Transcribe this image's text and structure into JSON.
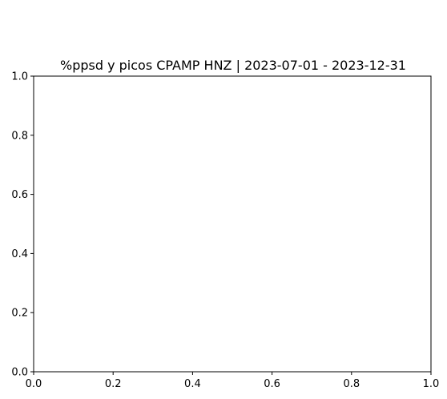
{
  "chart_data": {
    "type": "line",
    "title": "%ppsd y picos CPAMP HNZ | 2023-07-01 - 2023-12-31",
    "xlabel": "",
    "ylabel": "",
    "xlim": [
      0,
      1
    ],
    "ylim": [
      0,
      1
    ],
    "xticks": [
      "0.0",
      "0.2",
      "0.4",
      "0.6",
      "0.8",
      "1.0"
    ],
    "yticks": [
      "0.0",
      "0.2",
      "0.4",
      "0.6",
      "0.8",
      "1.0"
    ],
    "series": [],
    "grid": false
  }
}
